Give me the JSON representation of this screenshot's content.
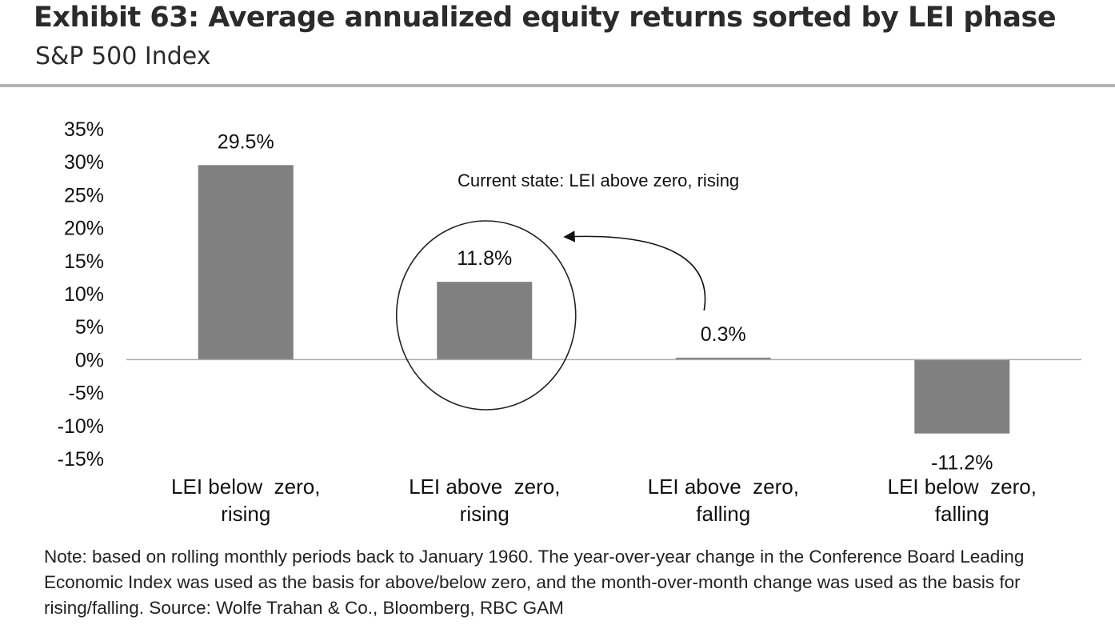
{
  "header": {
    "title": "Exhibit 63: Average annualized equity returns sorted by LEI phase",
    "subtitle": "S&P 500 Index"
  },
  "note": "Note: based on rolling monthly periods back to January 1960. The year-over-year change in the Conference Board Leading Economic Index was used as the basis for above/below zero, and the month-over-month change was used as the basis for rising/falling. Source: Wolfe Trahan & Co., Bloomberg, RBC GAM",
  "annotation": {
    "text": "Current state: LEI above zero, rising",
    "highlight_category_index": 1
  },
  "colors": {
    "bar": "#808080",
    "axis": "#aaaaaa",
    "text": "#111111",
    "rule": "#b3b3b3"
  },
  "chart_data": {
    "type": "bar",
    "categories": [
      [
        "LEI below  zero,",
        "rising"
      ],
      [
        "LEI above  zero,",
        "rising"
      ],
      [
        "LEI above  zero,",
        "falling"
      ],
      [
        "LEI below  zero,",
        "falling"
      ]
    ],
    "values": [
      29.5,
      11.8,
      0.3,
      -11.2
    ],
    "data_labels": [
      "29.5%",
      "11.8%",
      "0.3%",
      "-11.2%"
    ],
    "ylim": [
      -15,
      35
    ],
    "yticks": [
      35,
      30,
      25,
      20,
      15,
      10,
      5,
      0,
      -5,
      -10,
      -15
    ],
    "ytick_labels": [
      "35%",
      "30%",
      "25%",
      "20%",
      "15%",
      "10%",
      "5%",
      "0%",
      "-5%",
      "-10%",
      "-15%"
    ],
    "grid": false,
    "legend": "none"
  }
}
